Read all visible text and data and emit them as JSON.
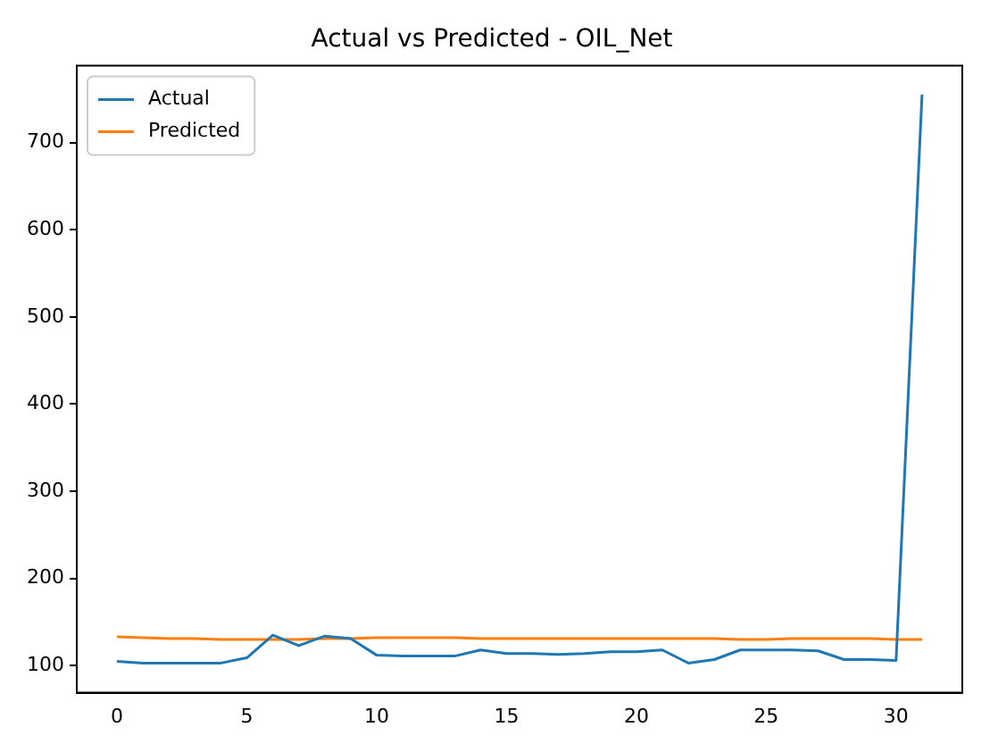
{
  "chart_data": {
    "type": "line",
    "title": "Actual vs Predicted - OIL_Net",
    "x": [
      0,
      1,
      2,
      3,
      4,
      5,
      6,
      7,
      8,
      9,
      10,
      11,
      12,
      13,
      14,
      15,
      16,
      17,
      18,
      19,
      20,
      21,
      22,
      23,
      24,
      25,
      26,
      27,
      28,
      29,
      30,
      31
    ],
    "series": [
      {
        "name": "Actual",
        "color": "#1f77b4",
        "values": [
          105,
          103,
          103,
          103,
          103,
          109,
          135,
          123,
          134,
          131,
          112,
          111,
          111,
          111,
          118,
          114,
          114,
          113,
          114,
          116,
          116,
          118,
          103,
          107,
          118,
          118,
          118,
          117,
          107,
          107,
          106,
          755
        ]
      },
      {
        "name": "Predicted",
        "color": "#ff7f0e",
        "values": [
          133,
          132,
          131,
          131,
          130,
          130,
          130,
          130,
          131,
          131,
          132,
          132,
          132,
          132,
          131,
          131,
          131,
          131,
          131,
          131,
          131,
          131,
          131,
          131,
          130,
          130,
          131,
          131,
          131,
          131,
          130,
          130
        ]
      }
    ],
    "xlim": [
      -1.55,
      32.55
    ],
    "ylim": [
      69,
      788
    ],
    "xticks": [
      0,
      5,
      10,
      15,
      20,
      25,
      30
    ],
    "yticks": [
      100,
      200,
      300,
      400,
      500,
      600,
      700
    ],
    "grid": false,
    "legend": "top left",
    "marker": "none",
    "line_style": "solid"
  }
}
